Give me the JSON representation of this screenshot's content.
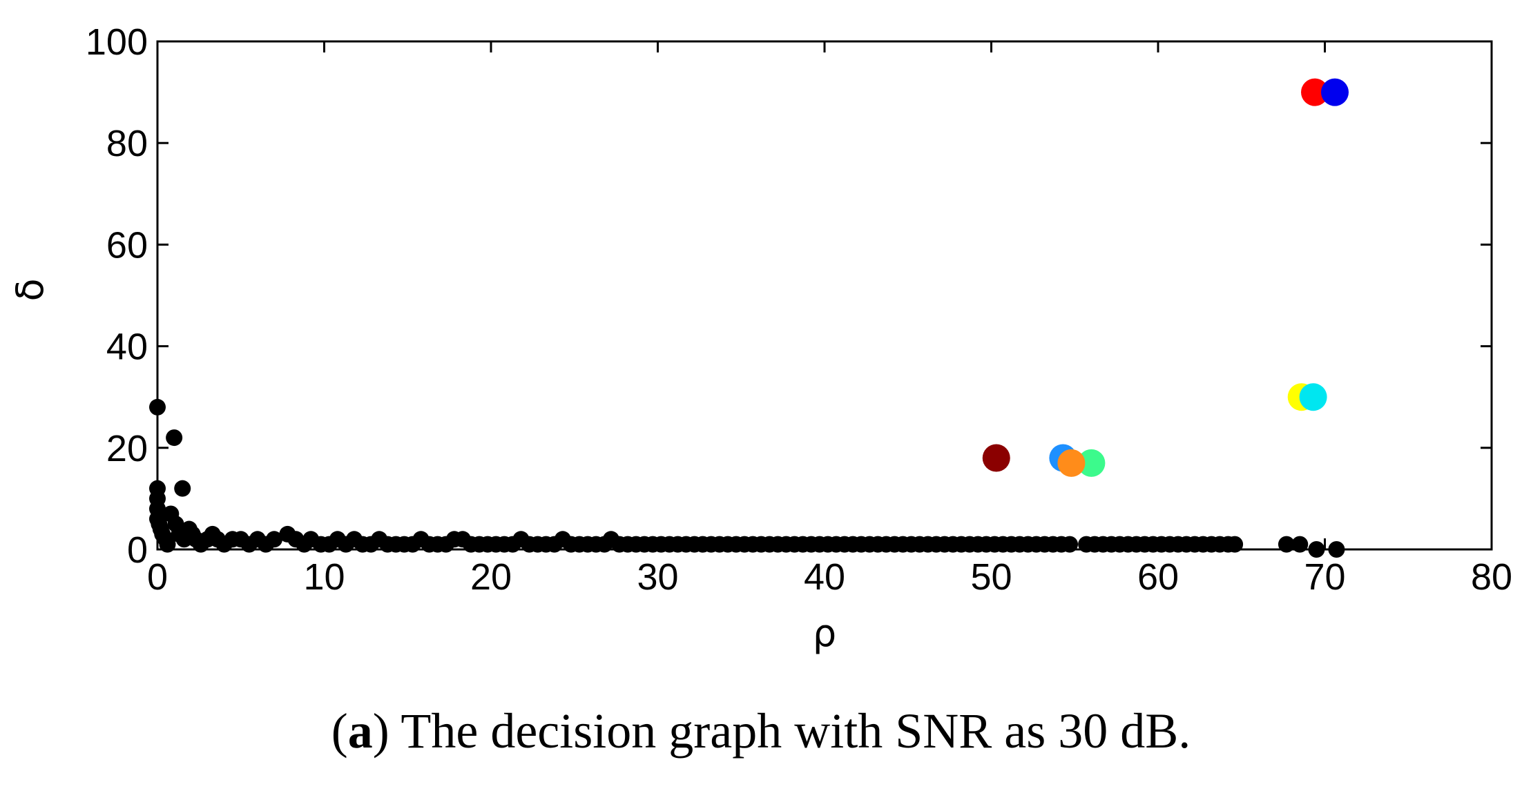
{
  "caption": {
    "open_paren": "(",
    "letter": "a",
    "rest": ") The decision graph with SNR as 30 dB."
  },
  "chart_data": {
    "type": "scatter",
    "title": "",
    "xlabel": "ρ",
    "ylabel": "δ",
    "xlim": [
      0,
      80
    ],
    "ylim": [
      0,
      100
    ],
    "x_ticks": [
      0,
      10,
      20,
      30,
      40,
      50,
      60,
      70,
      80
    ],
    "y_ticks": [
      0,
      20,
      40,
      60,
      80,
      100
    ],
    "grid": false,
    "legend": "none",
    "series": [
      {
        "color": "#000000",
        "points": [
          [
            0.0,
            28
          ],
          [
            0.0,
            12
          ],
          [
            0.0,
            10
          ],
          [
            0.0,
            8
          ],
          [
            0.0,
            6
          ],
          [
            0.1,
            5
          ],
          [
            0.2,
            4
          ],
          [
            0.3,
            3
          ],
          [
            0.5,
            2
          ],
          [
            0.6,
            1
          ],
          [
            1.0,
            22
          ],
          [
            1.5,
            12
          ],
          [
            0.8,
            7
          ],
          [
            1.1,
            5
          ],
          [
            1.3,
            3
          ],
          [
            1.6,
            2
          ],
          [
            1.9,
            4
          ],
          [
            2.1,
            3
          ],
          [
            2.3,
            2
          ],
          [
            2.6,
            1
          ],
          [
            3.0,
            2
          ],
          [
            3.3,
            3
          ],
          [
            3.6,
            2
          ],
          [
            4.0,
            1
          ],
          [
            4.5,
            2
          ],
          [
            5.0,
            2
          ],
          [
            5.5,
            1
          ],
          [
            6.0,
            2
          ],
          [
            6.5,
            1
          ],
          [
            7.0,
            2
          ],
          [
            7.8,
            3
          ],
          [
            8.3,
            2
          ],
          [
            8.8,
            1
          ],
          [
            9.2,
            2
          ],
          [
            9.8,
            1
          ],
          [
            10.3,
            1
          ],
          [
            10.8,
            2
          ],
          [
            11.3,
            1
          ],
          [
            11.8,
            2
          ],
          [
            12.3,
            1
          ],
          [
            12.8,
            1
          ],
          [
            13.3,
            2
          ],
          [
            13.8,
            1
          ],
          [
            14.3,
            1
          ],
          [
            14.8,
            1
          ],
          [
            15.3,
            1
          ],
          [
            15.8,
            2
          ],
          [
            16.3,
            1
          ],
          [
            16.8,
            1
          ],
          [
            17.3,
            1
          ],
          [
            17.8,
            2
          ],
          [
            18.3,
            2
          ],
          [
            18.8,
            1
          ],
          [
            19.3,
            1
          ],
          [
            19.8,
            1
          ],
          [
            20.3,
            1
          ],
          [
            20.8,
            1
          ],
          [
            21.3,
            1
          ],
          [
            21.8,
            2
          ],
          [
            22.3,
            1
          ],
          [
            22.8,
            1
          ],
          [
            23.3,
            1
          ],
          [
            23.8,
            1
          ],
          [
            24.3,
            2
          ],
          [
            24.8,
            1
          ],
          [
            25.3,
            1
          ],
          [
            25.8,
            1
          ],
          [
            26.3,
            1
          ],
          [
            26.8,
            1
          ],
          [
            27.2,
            2
          ],
          [
            27.7,
            1
          ],
          [
            28.2,
            1
          ],
          [
            28.7,
            1
          ],
          [
            29.2,
            1
          ],
          [
            29.7,
            1
          ],
          [
            30.2,
            1
          ],
          [
            30.7,
            1
          ],
          [
            31.2,
            1
          ],
          [
            31.7,
            1
          ],
          [
            32.2,
            1
          ],
          [
            32.7,
            1
          ],
          [
            33.2,
            1
          ],
          [
            33.7,
            1
          ],
          [
            34.2,
            1
          ],
          [
            34.7,
            1
          ],
          [
            35.2,
            1
          ],
          [
            35.7,
            1
          ],
          [
            36.2,
            1
          ],
          [
            36.7,
            1
          ],
          [
            37.2,
            1
          ],
          [
            37.7,
            1
          ],
          [
            38.2,
            1
          ],
          [
            38.7,
            1
          ],
          [
            39.2,
            1
          ],
          [
            39.7,
            1
          ],
          [
            40.2,
            1
          ],
          [
            40.7,
            1
          ],
          [
            41.2,
            1
          ],
          [
            41.7,
            1
          ],
          [
            42.2,
            1
          ],
          [
            42.7,
            1
          ],
          [
            43.2,
            1
          ],
          [
            43.7,
            1
          ],
          [
            44.2,
            1
          ],
          [
            44.7,
            1
          ],
          [
            45.2,
            1
          ],
          [
            45.7,
            1
          ],
          [
            46.2,
            1
          ],
          [
            46.7,
            1
          ],
          [
            47.2,
            1
          ],
          [
            47.7,
            1
          ],
          [
            48.2,
            1
          ],
          [
            48.7,
            1
          ],
          [
            49.2,
            1
          ],
          [
            49.7,
            1
          ],
          [
            50.2,
            1
          ],
          [
            50.7,
            1
          ],
          [
            51.2,
            1
          ],
          [
            51.7,
            1
          ],
          [
            52.2,
            1
          ],
          [
            52.7,
            1
          ],
          [
            53.2,
            1
          ],
          [
            53.7,
            1
          ],
          [
            54.2,
            1
          ],
          [
            54.7,
            1
          ],
          [
            55.7,
            1
          ],
          [
            56.2,
            1
          ],
          [
            56.7,
            1
          ],
          [
            57.2,
            1
          ],
          [
            57.7,
            1
          ],
          [
            58.2,
            1
          ],
          [
            58.7,
            1
          ],
          [
            59.2,
            1
          ],
          [
            59.7,
            1
          ],
          [
            60.2,
            1
          ],
          [
            60.7,
            1
          ],
          [
            61.2,
            1
          ],
          [
            61.7,
            1
          ],
          [
            62.2,
            1
          ],
          [
            62.7,
            1
          ],
          [
            63.2,
            1
          ],
          [
            63.7,
            1
          ],
          [
            64.2,
            1
          ],
          [
            64.6,
            1
          ],
          [
            67.7,
            1
          ],
          [
            68.5,
            1
          ],
          [
            69.5,
            0
          ],
          [
            70.7,
            0
          ]
        ]
      },
      {
        "color": "#ff0000",
        "points": [
          [
            69.4,
            90
          ]
        ]
      },
      {
        "color": "#0000ee",
        "points": [
          [
            70.6,
            90
          ]
        ]
      },
      {
        "color": "#ffff00",
        "points": [
          [
            68.6,
            30
          ]
        ]
      },
      {
        "color": "#00e6f0",
        "points": [
          [
            69.3,
            30
          ]
        ]
      },
      {
        "color": "#8b0000",
        "points": [
          [
            50.3,
            18
          ]
        ]
      },
      {
        "color": "#1e90ff",
        "points": [
          [
            54.3,
            18
          ]
        ]
      },
      {
        "color": "#3cfa8c",
        "points": [
          [
            56.0,
            17
          ]
        ]
      },
      {
        "color": "#ff8c1a",
        "points": [
          [
            54.8,
            17
          ]
        ]
      }
    ]
  }
}
